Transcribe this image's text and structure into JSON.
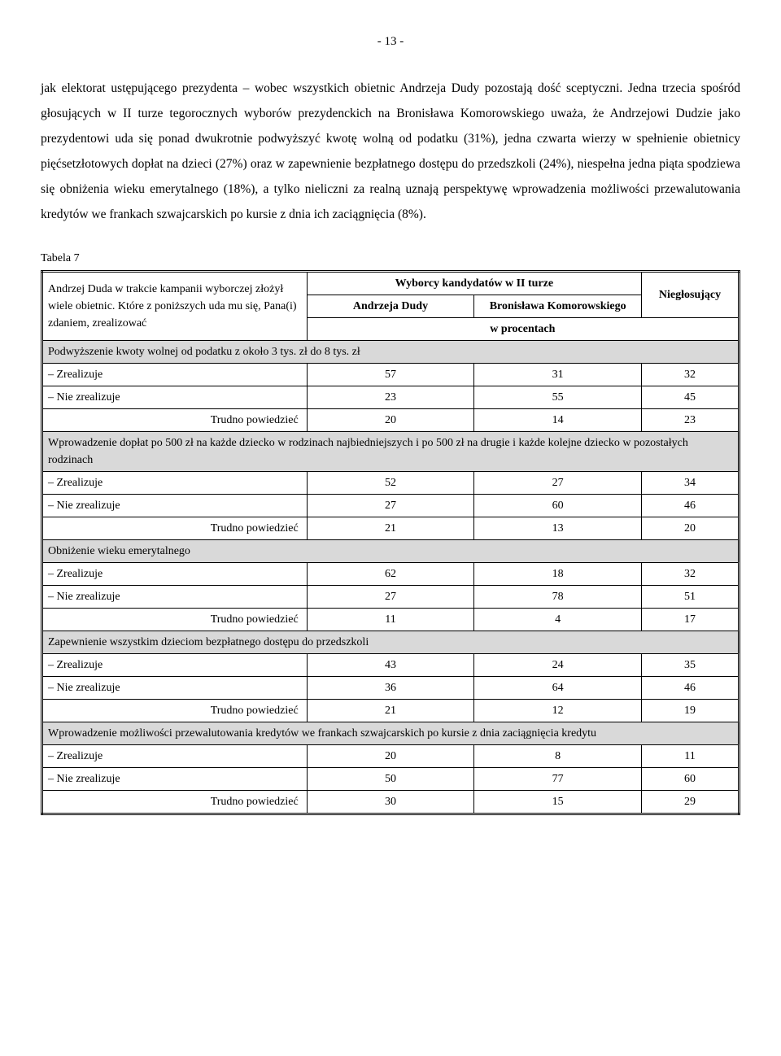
{
  "page_number": "- 13 -",
  "paragraph": "jak elektorat ustępującego prezydenta – wobec wszystkich obietnic Andrzeja Dudy pozostają dość sceptyczni. Jedna trzecia spośród głosujących w II turze tegorocznych wyborów prezydenckich na Bronisława Komorowskiego uważa, że Andrzejowi Dudzie jako prezydentowi uda się ponad dwukrotnie podwyższyć kwotę wolną od podatku (31%), jedna czwarta wierzy w spełnienie obietnicy pięćsetzłotowych dopłat na dzieci (27%) oraz w zapewnienie bezpłatnego dostępu do przedszkoli (24%), niespełna jedna piąta spodziewa się obniżenia wieku emerytalnego (18%), a tylko nieliczni za realną uznają perspektywę wprowadzenia możliwości przewalutowania kredytów we frankach szwajcarskich po kursie z  dnia ich zaciągnięcia (8%).",
  "table_label": "Tabela 7",
  "table": {
    "question": "Andrzej Duda w trakcie kampanii wyborczej złożył wiele obietnic. Które z poniższych uda mu się, Pana(i) zdaniem, zrealizować",
    "header_group": "Wyborcy kandydatów w II turze",
    "col_andrzej": "Andrzeja Dudy",
    "col_bronislaw": "Bronisława Komorowskiego",
    "col_nieglos": "Niegłosujący",
    "unit": "w procentach",
    "sections": [
      {
        "title": "Podwyższenie kwoty wolnej od podatku z około 3 tys. zł do 8 tys. zł",
        "rows": [
          {
            "label": "– Zrealizuje",
            "a": "57",
            "b": "31",
            "c": "32"
          },
          {
            "label": "– Nie zrealizuje",
            "a": "23",
            "b": "55",
            "c": "45"
          },
          {
            "label": "Trudno powiedzieć",
            "indent": true,
            "a": "20",
            "b": "14",
            "c": "23"
          }
        ]
      },
      {
        "title": "Wprowadzenie dopłat po 500 zł na każde dziecko w rodzinach najbiedniejszych i po 500 zł na drugie i każde kolejne dziecko w pozostałych rodzinach",
        "rows": [
          {
            "label": "– Zrealizuje",
            "a": "52",
            "b": "27",
            "c": "34"
          },
          {
            "label": "– Nie zrealizuje",
            "a": "27",
            "b": "60",
            "c": "46"
          },
          {
            "label": "Trudno powiedzieć",
            "indent": true,
            "a": "21",
            "b": "13",
            "c": "20"
          }
        ]
      },
      {
        "title": "Obniżenie wieku emerytalnego",
        "rows": [
          {
            "label": "– Zrealizuje",
            "a": "62",
            "b": "18",
            "c": "32"
          },
          {
            "label": "– Nie zrealizuje",
            "a": "27",
            "b": "78",
            "c": "51"
          },
          {
            "label": "Trudno powiedzieć",
            "indent": true,
            "a": "11",
            "b": "4",
            "c": "17"
          }
        ]
      },
      {
        "title": "Zapewnienie wszystkim dzieciom bezpłatnego dostępu do przedszkoli",
        "rows": [
          {
            "label": "– Zrealizuje",
            "a": "43",
            "b": "24",
            "c": "35"
          },
          {
            "label": "– Nie zrealizuje",
            "a": "36",
            "b": "64",
            "c": "46"
          },
          {
            "label": "Trudno powiedzieć",
            "indent": true,
            "a": "21",
            "b": "12",
            "c": "19"
          }
        ]
      },
      {
        "title": "Wprowadzenie możliwości przewalutowania kredytów we frankach szwajcarskich po kursie z dnia zaciągnięcia kredytu",
        "rows": [
          {
            "label": "– Zrealizuje",
            "a": "20",
            "b": "8",
            "c": "11"
          },
          {
            "label": "– Nie zrealizuje",
            "a": "50",
            "b": "77",
            "c": "60"
          },
          {
            "label": "Trudno powiedzieć",
            "indent": true,
            "a": "30",
            "b": "15",
            "c": "29"
          }
        ]
      }
    ]
  }
}
